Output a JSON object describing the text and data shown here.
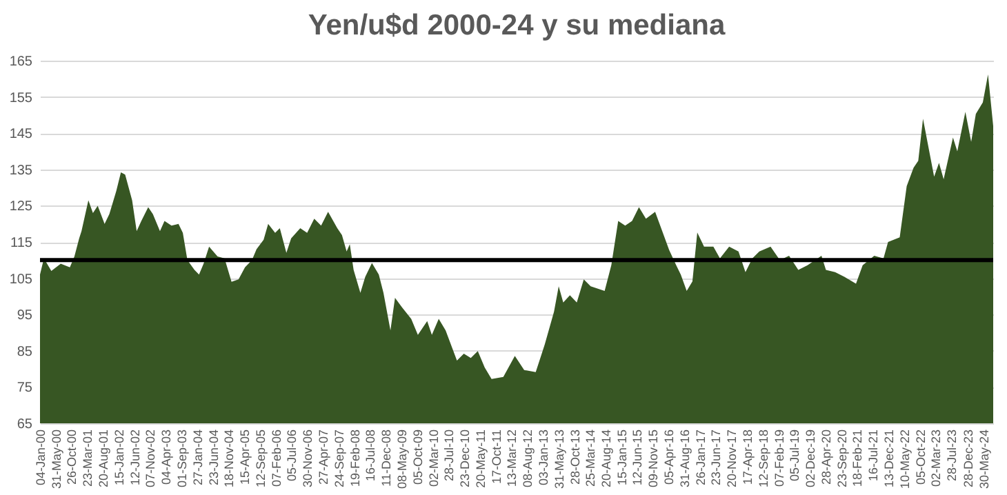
{
  "chart_data": {
    "type": "area",
    "title": "Yen/u$d 2000-24 y su mediana",
    "x": [
      "2000-01-04",
      "2000-02-10",
      "2000-04-20",
      "2000-07-18",
      "2000-10-12",
      "2000-11-24",
      "2001-01-08",
      "2001-01-30",
      "2001-04-05",
      "2001-05-18",
      "2001-07-02",
      "2001-09-05",
      "2001-10-20",
      "2001-12-24",
      "2002-02-06",
      "2002-03-18",
      "2002-05-23",
      "2002-07-05",
      "2002-08-18",
      "2002-10-22",
      "2002-12-05",
      "2003-02-10",
      "2003-03-25",
      "2003-05-30",
      "2003-08-04",
      "2003-09-14",
      "2003-10-27",
      "2004-01-02",
      "2004-02-14",
      "2004-03-28",
      "2004-05-19",
      "2004-08-07",
      "2004-10-12",
      "2004-12-17",
      "2005-02-21",
      "2005-04-23",
      "2005-06-28",
      "2005-08-10",
      "2005-10-16",
      "2005-11-28",
      "2006-02-02",
      "2006-03-18",
      "2006-05-19",
      "2006-07-03",
      "2006-09-27",
      "2006-12-01",
      "2007-02-06",
      "2007-04-12",
      "2007-06-17",
      "2007-09-12",
      "2007-10-26",
      "2007-12-09",
      "2008-01-08",
      "2008-02-13",
      "2008-04-17",
      "2008-06-02",
      "2008-08-04",
      "2008-10-08",
      "2008-11-21",
      "2009-01-26",
      "2009-03-10",
      "2009-05-15",
      "2009-08-10",
      "2009-10-12",
      "2010-01-08",
      "2010-02-21",
      "2010-04-27",
      "2010-07-01",
      "2010-10-16",
      "2010-12-20",
      "2011-02-24",
      "2011-05-01",
      "2011-07-05",
      "2011-09-08",
      "2011-12-28",
      "2012-04-15",
      "2012-07-12",
      "2012-10-29",
      "2013-01-23",
      "2013-04-20",
      "2013-06-03",
      "2013-07-16",
      "2013-09-17",
      "2013-11-21",
      "2014-01-26",
      "2014-04-01",
      "2014-08-11",
      "2014-10-13",
      "2014-12-17",
      "2015-02-21",
      "2015-04-27",
      "2015-07-01",
      "2015-09-05",
      "2015-12-01",
      "2016-02-06",
      "2016-04-11",
      "2016-06-17",
      "2016-07-30",
      "2016-09-24",
      "2016-11-17",
      "2017-01-02",
      "2017-03-07",
      "2017-06-03",
      "2017-08-04",
      "2017-10-30",
      "2018-01-26",
      "2018-04-02",
      "2018-06-06",
      "2018-08-11",
      "2018-11-25",
      "2019-02-21",
      "2019-05-19",
      "2019-08-14",
      "2019-11-09",
      "2020-03-20",
      "2020-05-01",
      "2020-07-27",
      "2020-10-22",
      "2021-02-09",
      "2021-04-13",
      "2021-07-31",
      "2021-10-27",
      "2021-12-09",
      "2022-03-29",
      "2022-06-03",
      "2022-08-07",
      "2022-09-20",
      "2022-11-04",
      "2023-02-17",
      "2023-04-04",
      "2023-05-18",
      "2023-08-14",
      "2023-09-24",
      "2023-12-09",
      "2024-02-02",
      "2024-03-17",
      "2024-05-22",
      "2024-07-10",
      "2024-08-28"
    ],
    "series": [
      {
        "color": "#375623",
        "values": [
          106,
          110.5,
          107,
          109,
          108,
          111,
          116,
          118,
          126.5,
          123,
          125,
          120,
          122.7,
          129,
          134.2,
          133.6,
          126.5,
          118,
          120.8,
          124.6,
          122.7,
          118,
          120.8,
          119.5,
          120,
          117.5,
          110,
          107.3,
          106,
          109,
          113.7,
          111,
          110.5,
          104,
          104.7,
          108,
          110,
          113,
          115.6,
          120,
          117.5,
          118.8,
          112,
          116,
          118.8,
          117.5,
          121.4,
          119.5,
          123.3,
          118.8,
          116.9,
          112.4,
          114.4,
          107.3,
          101,
          105.4,
          109.2,
          106,
          101,
          90.6,
          99.6,
          97,
          93.8,
          89.4,
          93.2,
          89.4,
          93.8,
          90.6,
          82.3,
          84.2,
          83,
          84.9,
          80.4,
          77.2,
          77.8,
          83.6,
          79.7,
          79.1,
          86.8,
          95.8,
          102.8,
          98.3,
          100.3,
          98.3,
          104.7,
          102.8,
          101.5,
          108.6,
          120.8,
          119.5,
          120.8,
          124.6,
          121.4,
          123.3,
          118,
          112.8,
          108.6,
          106,
          101.5,
          104.1,
          117.6,
          113.7,
          113.7,
          110.5,
          113.7,
          112.4,
          106.7,
          110.5,
          112.4,
          113.7,
          110,
          111.2,
          107.3,
          108.6,
          111.2,
          107.3,
          106.7,
          105.4,
          103.5,
          108.6,
          111.2,
          110.5,
          115,
          116.3,
          130.4,
          135.5,
          137.4,
          149,
          133,
          136.8,
          132.3,
          143.8,
          140,
          150.9,
          142.6,
          150.3,
          153.5,
          161.2,
          147
        ]
      }
    ],
    "xlim": [
      "2000-01-04",
      "2024-08-28"
    ],
    "xticks": [
      {
        "value": "2000-01-04",
        "label": "04-Jan-00"
      },
      {
        "value": "2000-05-31",
        "label": "31-May-00"
      },
      {
        "value": "2000-10-26",
        "label": "26-Oct-00"
      },
      {
        "value": "2001-03-23",
        "label": "23-Mar-01"
      },
      {
        "value": "2001-08-20",
        "label": "20-Aug-01"
      },
      {
        "value": "2002-01-15",
        "label": "15-Jan-02"
      },
      {
        "value": "2002-06-12",
        "label": "12-Jun-02"
      },
      {
        "value": "2002-11-07",
        "label": "07-Nov-02"
      },
      {
        "value": "2003-04-04",
        "label": "04-Apr-03"
      },
      {
        "value": "2003-09-01",
        "label": "01-Sep-03"
      },
      {
        "value": "2004-01-27",
        "label": "27-Jan-04"
      },
      {
        "value": "2004-06-23",
        "label": "23-Jun-04"
      },
      {
        "value": "2004-11-18",
        "label": "18-Nov-04"
      },
      {
        "value": "2005-04-15",
        "label": "15-Apr-05"
      },
      {
        "value": "2005-09-12",
        "label": "12-Sep-05"
      },
      {
        "value": "2006-02-07",
        "label": "07-Feb-06"
      },
      {
        "value": "2006-07-05",
        "label": "05-Jul-06"
      },
      {
        "value": "2006-11-30",
        "label": "30-Nov-06"
      },
      {
        "value": "2007-04-27",
        "label": "27-Apr-07"
      },
      {
        "value": "2007-09-24",
        "label": "24-Sep-07"
      },
      {
        "value": "2008-02-19",
        "label": "19-Feb-08"
      },
      {
        "value": "2008-07-16",
        "label": "16-Jul-08"
      },
      {
        "value": "2008-12-11",
        "label": "11-Dec-08"
      },
      {
        "value": "2009-05-08",
        "label": "08-May-09"
      },
      {
        "value": "2009-10-05",
        "label": "05-Oct-09"
      },
      {
        "value": "2010-03-02",
        "label": "02-Mar-10"
      },
      {
        "value": "2010-07-28",
        "label": "28-Jul-10"
      },
      {
        "value": "2010-12-23",
        "label": "23-Dec-10"
      },
      {
        "value": "2011-05-20",
        "label": "20-May-11"
      },
      {
        "value": "2011-10-17",
        "label": "17-Oct-11"
      },
      {
        "value": "2012-03-13",
        "label": "13-Mar-12"
      },
      {
        "value": "2012-08-08",
        "label": "08-Aug-12"
      },
      {
        "value": "2013-01-03",
        "label": "03-Jan-13"
      },
      {
        "value": "2013-05-31",
        "label": "31-May-13"
      },
      {
        "value": "2013-10-28",
        "label": "28-Oct-13"
      },
      {
        "value": "2014-03-25",
        "label": "25-Mar-14"
      },
      {
        "value": "2014-08-20",
        "label": "20-Aug-14"
      },
      {
        "value": "2015-01-15",
        "label": "15-Jan-15"
      },
      {
        "value": "2015-06-12",
        "label": "12-Jun-15"
      },
      {
        "value": "2015-11-09",
        "label": "09-Nov-15"
      },
      {
        "value": "2016-04-05",
        "label": "05-Apr-16"
      },
      {
        "value": "2016-08-31",
        "label": "31-Aug-16"
      },
      {
        "value": "2017-01-26",
        "label": "26-Jan-17"
      },
      {
        "value": "2017-06-23",
        "label": "23-Jun-17"
      },
      {
        "value": "2017-11-20",
        "label": "20-Nov-17"
      },
      {
        "value": "2018-04-17",
        "label": "17-Apr-18"
      },
      {
        "value": "2018-09-12",
        "label": "12-Sep-18"
      },
      {
        "value": "2019-02-07",
        "label": "07-Feb-19"
      },
      {
        "value": "2019-07-05",
        "label": "05-Jul-19"
      },
      {
        "value": "2019-12-02",
        "label": "02-Dec-19"
      },
      {
        "value": "2020-04-28",
        "label": "28-Apr-20"
      },
      {
        "value": "2020-09-23",
        "label": "23-Sep-20"
      },
      {
        "value": "2021-02-18",
        "label": "18-Feb-21"
      },
      {
        "value": "2021-07-16",
        "label": "16-Jul-21"
      },
      {
        "value": "2021-12-13",
        "label": "13-Dec-21"
      },
      {
        "value": "2022-05-10",
        "label": "10-May-22"
      },
      {
        "value": "2022-10-05",
        "label": "05-Oct-22"
      },
      {
        "value": "2023-03-02",
        "label": "02-Mar-23"
      },
      {
        "value": "2023-07-28",
        "label": "28-Jul-23"
      },
      {
        "value": "2023-12-28",
        "label": "28-Dec-23"
      },
      {
        "value": "2024-05-30",
        "label": "30-May-24"
      }
    ],
    "ylim": [
      65,
      165
    ],
    "yticks": [
      65,
      75,
      85,
      95,
      105,
      115,
      125,
      135,
      145,
      155,
      165
    ],
    "grid": "y",
    "ref_lines": [
      {
        "axis": "y",
        "value": 110,
        "color": "#000000"
      }
    ]
  }
}
